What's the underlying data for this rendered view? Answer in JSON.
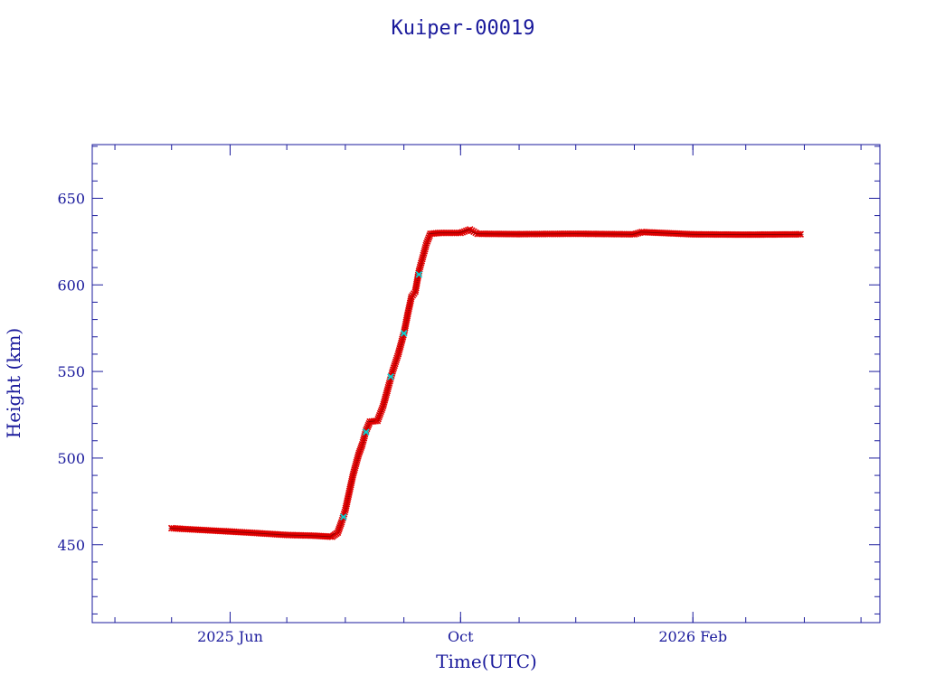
{
  "chart_data": {
    "type": "scatter",
    "title": "Kuiper-00019",
    "xlabel": "Time(UTC)",
    "ylabel": "Height (km)",
    "xlim": [
      "2025-03-20",
      "2026-05-11"
    ],
    "ylim": [
      405,
      681
    ],
    "grid": false,
    "legend": "none",
    "colors": {
      "axis": "#1a1a9c",
      "primary": "#e00000",
      "secondary": "#00d8d8",
      "marker_edge": "#8a0000"
    },
    "x_ticks": [
      {
        "date": "2025-06-01",
        "label": "2025 Jun"
      },
      {
        "date": "2025-10-01",
        "label": "Oct"
      },
      {
        "date": "2026-02-01",
        "label": "2026 Feb"
      }
    ],
    "y_ticks": [
      {
        "value": 450,
        "label": "450"
      },
      {
        "value": 500,
        "label": "500"
      },
      {
        "value": 550,
        "label": "550"
      },
      {
        "value": 600,
        "label": "600"
      },
      {
        "value": 650,
        "label": "650"
      }
    ],
    "series": [
      {
        "marker": "cross",
        "points": [
          [
            "2025-05-01",
            459.5
          ],
          [
            "2025-05-15",
            458.6
          ],
          [
            "2025-06-01",
            457.6
          ],
          [
            "2025-06-15",
            456.7
          ],
          [
            "2025-07-01",
            455.6
          ],
          [
            "2025-07-15",
            455.2
          ],
          [
            "2025-07-25",
            454.6
          ],
          [
            "2025-07-28",
            457.0
          ],
          [
            "2025-07-30",
            463.0
          ],
          [
            "2025-08-01",
            470.0
          ],
          [
            "2025-08-03",
            480.0
          ],
          [
            "2025-08-05",
            490.0
          ],
          [
            "2025-08-08",
            502.0
          ],
          [
            "2025-08-10",
            508.0
          ],
          [
            "2025-08-12",
            516.0
          ],
          [
            "2025-08-14",
            521.0
          ],
          [
            "2025-08-18",
            521.5
          ],
          [
            "2025-08-21",
            530.0
          ],
          [
            "2025-08-24",
            542.0
          ],
          [
            "2025-08-26",
            550.0
          ],
          [
            "2025-08-29",
            560.0
          ],
          [
            "2025-09-01",
            572.0
          ],
          [
            "2025-09-03",
            583.0
          ],
          [
            "2025-09-05",
            593.0
          ],
          [
            "2025-09-07",
            596.0
          ],
          [
            "2025-09-09",
            608.0
          ],
          [
            "2025-09-11",
            616.0
          ],
          [
            "2025-09-13",
            624.0
          ],
          [
            "2025-09-15",
            629.5
          ],
          [
            "2025-09-20",
            630.0
          ],
          [
            "2025-10-01",
            630.0
          ],
          [
            "2025-10-06",
            632.0
          ],
          [
            "2025-10-10",
            629.5
          ],
          [
            "2025-11-01",
            629.3
          ],
          [
            "2025-12-01",
            629.5
          ],
          [
            "2026-01-01",
            629.2
          ],
          [
            "2026-01-05",
            630.5
          ],
          [
            "2026-02-01",
            629.2
          ],
          [
            "2026-03-01",
            629.0
          ],
          [
            "2026-03-30",
            629.2
          ]
        ]
      },
      {
        "marker": "cross",
        "points": [
          [
            "2025-07-31",
            466.0
          ],
          [
            "2025-08-12",
            515.0
          ],
          [
            "2025-08-25",
            547.0
          ],
          [
            "2025-09-01",
            572.0
          ],
          [
            "2025-09-09",
            606.0
          ]
        ]
      }
    ]
  }
}
